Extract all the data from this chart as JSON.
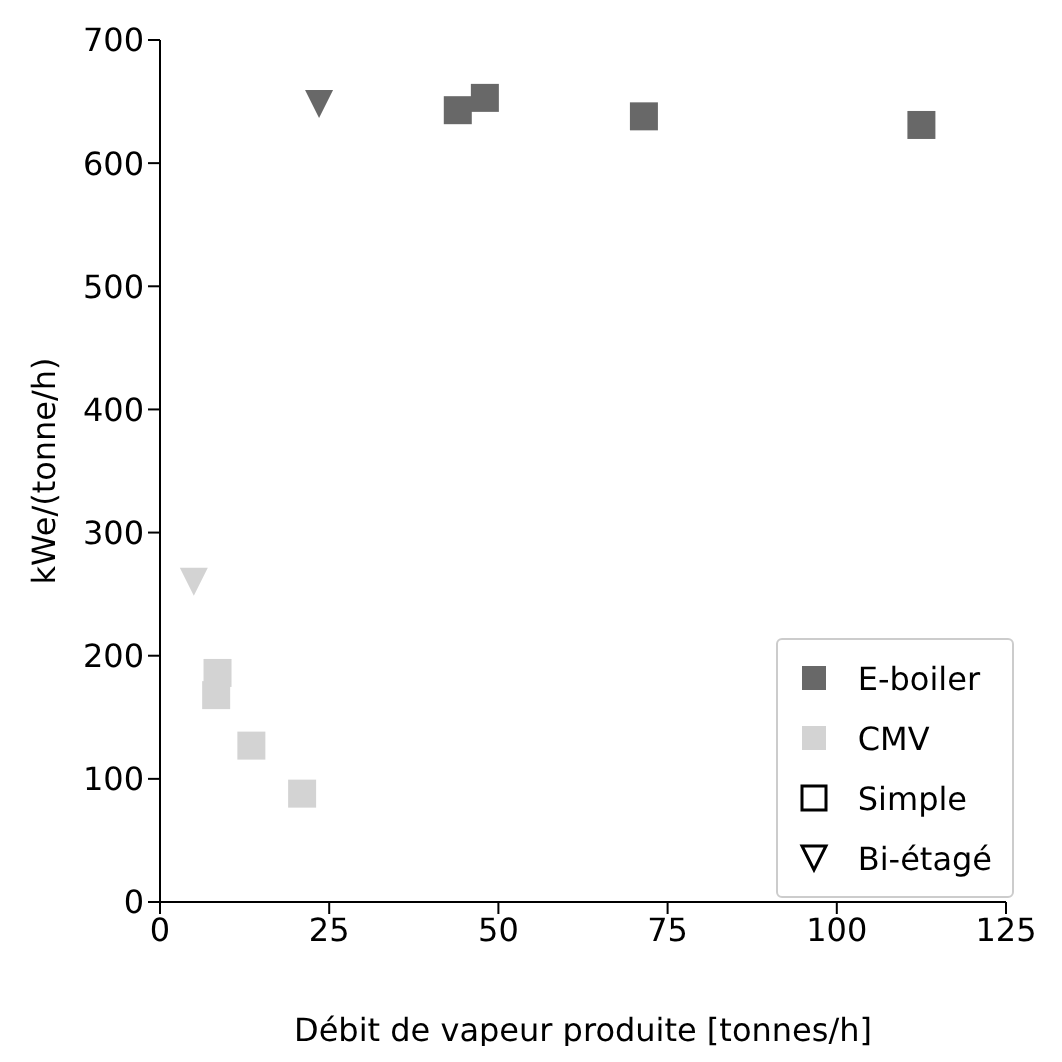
{
  "chart_data": {
    "type": "scatter",
    "xlabel": "Débit de vapeur produite [tonnes/h]",
    "ylabel": "kWe/(tonne/h)",
    "xlim": [
      0,
      125
    ],
    "xticks": [
      0,
      25,
      50,
      75,
      100,
      125
    ],
    "ylim": [
      0,
      700
    ],
    "yticks": [
      0,
      100,
      200,
      300,
      400,
      500,
      600,
      700
    ],
    "grid": false,
    "legend": "bottom right",
    "annotations": [
      "Simple",
      "Bi-étagé"
    ],
    "series": [
      {
        "name": "E-boiler",
        "color": "#686868",
        "marker": "square",
        "x": [
          44,
          48,
          71.5,
          112.5
        ],
        "values": [
          643,
          653,
          638,
          631
        ]
      },
      {
        "name": "CMV",
        "color": "#d3d3d3",
        "marker": "square",
        "x": [
          8.5,
          8.3,
          13.5,
          21
        ],
        "values": [
          186,
          168,
          127,
          88
        ]
      },
      {
        "color": "#686868",
        "marker": "triangle",
        "x": [
          23.5
        ],
        "values": [
          648
        ]
      },
      {
        "color": "#d3d3d3",
        "marker": "triangle",
        "x": [
          5
        ],
        "values": [
          260
        ]
      }
    ]
  }
}
